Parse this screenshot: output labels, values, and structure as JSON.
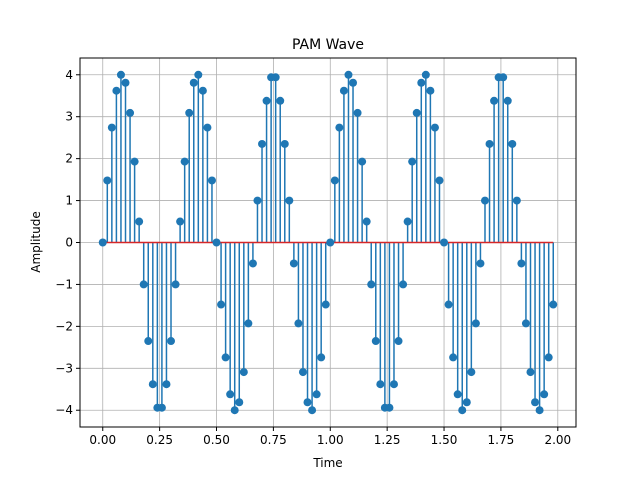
{
  "chart_data": {
    "type": "stem",
    "title": "PAM Wave",
    "xlabel": "Time",
    "ylabel": "Amplitude",
    "xlim": [
      -0.1,
      2.08
    ],
    "ylim": [
      -4.4,
      4.4
    ],
    "x_ticks": [
      0.0,
      0.25,
      0.5,
      0.75,
      1.0,
      1.25,
      1.5,
      1.75,
      2.0
    ],
    "x_tick_labels": [
      "0.00",
      "0.25",
      "0.50",
      "0.75",
      "1.00",
      "1.25",
      "1.50",
      "1.75",
      "2.00"
    ],
    "y_ticks": [
      -4,
      -3,
      -2,
      -1,
      0,
      1,
      2,
      3,
      4
    ],
    "y_tick_labels": [
      "−4",
      "−3",
      "−2",
      "−1",
      "0",
      "1",
      "2",
      "3",
      "4"
    ],
    "grid": true,
    "baseline": 0,
    "colors": {
      "stem": "#1f77b4",
      "marker": "#1f77b4",
      "baseline": "#d62728",
      "grid": "#b0b0b0"
    },
    "x": [
      0.0,
      0.02,
      0.04,
      0.06,
      0.08,
      0.1,
      0.12,
      0.14,
      0.16,
      0.18,
      0.2,
      0.22,
      0.24,
      0.26,
      0.28,
      0.3,
      0.32,
      0.34,
      0.36,
      0.38,
      0.4,
      0.42,
      0.44,
      0.46,
      0.48,
      0.5,
      0.52,
      0.54,
      0.56,
      0.58,
      0.6,
      0.62,
      0.64,
      0.66,
      0.68,
      0.7,
      0.72,
      0.74,
      0.76,
      0.78,
      0.8,
      0.82,
      0.84,
      0.86,
      0.88,
      0.9,
      0.92,
      0.94,
      0.96,
      0.98,
      1.0,
      1.02,
      1.04,
      1.06,
      1.08,
      1.1,
      1.12,
      1.14,
      1.16,
      1.18,
      1.2,
      1.22,
      1.24,
      1.26,
      1.28,
      1.3,
      1.32,
      1.34,
      1.36,
      1.38,
      1.4,
      1.42,
      1.44,
      1.46,
      1.48,
      1.5,
      1.52,
      1.54,
      1.56,
      1.58,
      1.6,
      1.62,
      1.64,
      1.66,
      1.68,
      1.7,
      1.72,
      1.74,
      1.76,
      1.78,
      1.8,
      1.82,
      1.84,
      1.86,
      1.88,
      1.9,
      1.92,
      1.94,
      1.96,
      1.98
    ],
    "values": [
      0.0,
      1.48,
      2.74,
      3.62,
      4.0,
      3.81,
      3.09,
      1.93,
      0.5,
      -1.0,
      -2.35,
      -3.38,
      -3.94,
      -3.94,
      -3.38,
      -2.35,
      -1.0,
      0.5,
      1.93,
      3.09,
      3.81,
      4.0,
      3.62,
      2.74,
      1.48,
      0.0,
      -1.48,
      -2.74,
      -3.62,
      -4.0,
      -3.81,
      -3.09,
      -1.93,
      -0.5,
      1.0,
      2.35,
      3.38,
      3.94,
      3.94,
      3.38,
      2.35,
      1.0,
      -0.5,
      -1.93,
      -3.09,
      -3.81,
      -4.0,
      -3.62,
      -2.74,
      -1.48,
      0.0,
      1.48,
      2.74,
      3.62,
      4.0,
      3.81,
      3.09,
      1.93,
      0.5,
      -1.0,
      -2.35,
      -3.38,
      -3.94,
      -3.94,
      -3.38,
      -2.35,
      -1.0,
      0.5,
      1.93,
      3.09,
      3.81,
      4.0,
      3.62,
      2.74,
      1.48,
      0.0,
      -1.48,
      -2.74,
      -3.62,
      -4.0,
      -3.81,
      -3.09,
      -1.93,
      -0.5,
      1.0,
      2.35,
      3.38,
      3.94,
      3.94,
      3.38,
      2.35,
      1.0,
      -0.5,
      -1.93,
      -3.09,
      -3.81,
      -4.0,
      -3.62,
      -2.74,
      -1.48
    ]
  }
}
